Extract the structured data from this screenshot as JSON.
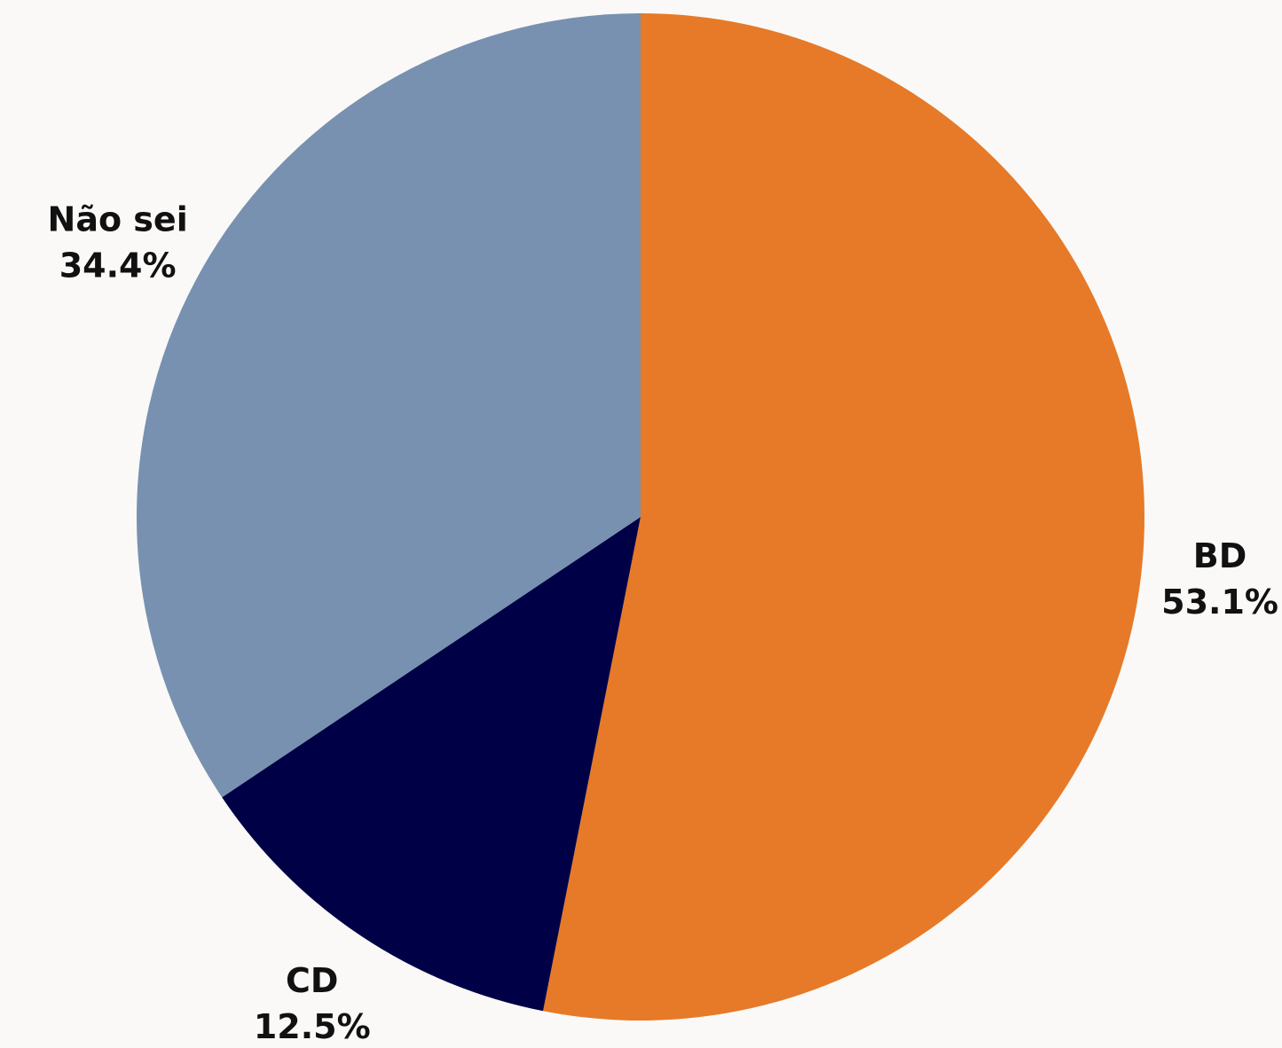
{
  "chart_data": {
    "type": "pie",
    "start_angle": "12 o'clock",
    "direction": "clockwise",
    "slices": [
      {
        "label": "BD",
        "value": 53.1,
        "value_label": "53.1%",
        "color": "#e67a28"
      },
      {
        "label": "CD",
        "value": 12.5,
        "value_label": "12.5%",
        "color": "#000046"
      },
      {
        "label": "Não sei",
        "value": 34.4,
        "value_label": "34.4%",
        "color": "#7891b0"
      }
    ],
    "background": "#faf9f8"
  }
}
